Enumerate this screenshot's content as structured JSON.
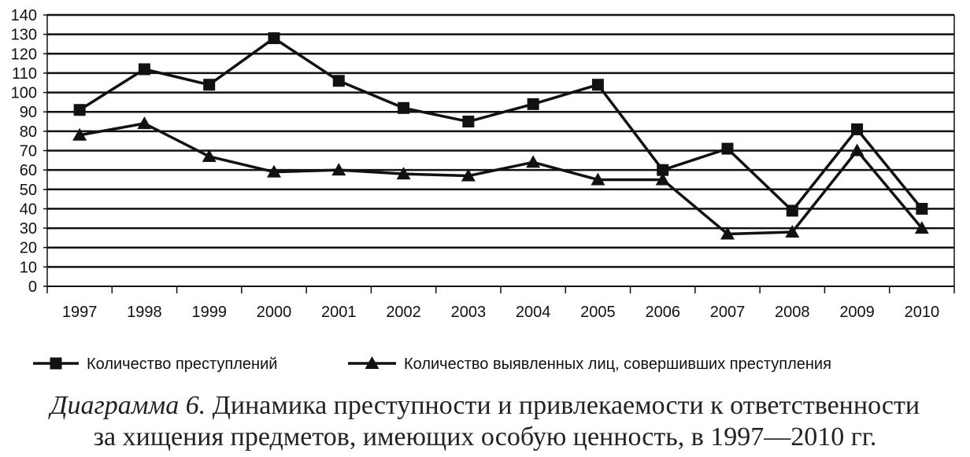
{
  "chart_data": {
    "type": "line",
    "title": "",
    "xlabel": "",
    "ylabel": "",
    "ylim": [
      0,
      140
    ],
    "yticks": [
      0,
      10,
      20,
      30,
      40,
      50,
      60,
      70,
      80,
      90,
      100,
      110,
      120,
      130,
      140
    ],
    "grid": true,
    "legend_position": "bottom",
    "categories": [
      "1997",
      "1998",
      "1999",
      "2000",
      "2001",
      "2002",
      "2003",
      "2004",
      "2005",
      "2006",
      "2007",
      "2008",
      "2009",
      "2010"
    ],
    "series": [
      {
        "name": "Количество преступлений",
        "marker": "square",
        "color": "#111111",
        "values": [
          91,
          112,
          104,
          128,
          106,
          92,
          85,
          94,
          104,
          60,
          71,
          39,
          81,
          40
        ]
      },
      {
        "name": "Количество выявленных лиц, совершивших преступления",
        "marker": "triangle",
        "color": "#111111",
        "values": [
          78,
          84,
          67,
          59,
          60,
          58,
          57,
          64,
          55,
          55,
          27,
          28,
          70,
          30
        ]
      }
    ]
  },
  "caption": {
    "lead": "Диаграмма 6.",
    "line1": "Динамика преступности и привлекаемости к ответственности",
    "line2": "за хищения предметов, имеющих особую ценность, в 1997—2010 гг."
  }
}
